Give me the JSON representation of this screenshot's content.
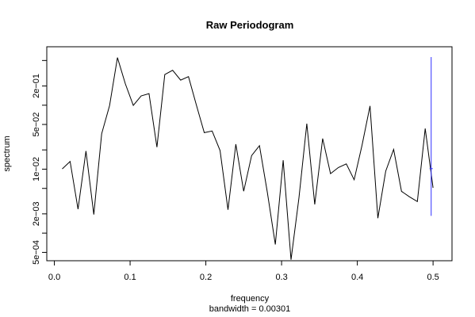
{
  "chart_data": {
    "type": "line",
    "title": "Raw Periodogram",
    "xlabel": "frequency",
    "sublabel": "bandwidth = 0.00301",
    "ylabel": "spectrum",
    "y_scale": "log",
    "xlim": [
      -0.01,
      0.525
    ],
    "ylim": [
      0.00037,
      0.82
    ],
    "x_ticks": [
      {
        "value": 0.0,
        "label": "0.0"
      },
      {
        "value": 0.1,
        "label": "0.1"
      },
      {
        "value": 0.2,
        "label": "0.2"
      },
      {
        "value": 0.3,
        "label": "0.3"
      },
      {
        "value": 0.4,
        "label": "0.4"
      },
      {
        "value": 0.5,
        "label": "0.5"
      }
    ],
    "y_ticks_major": [
      {
        "value": 0.0005,
        "label": "5e−04"
      },
      {
        "value": 0.002,
        "label": "2e−03"
      },
      {
        "value": 0.01,
        "label": "1e−02"
      },
      {
        "value": 0.05,
        "label": "5e−02"
      },
      {
        "value": 0.2,
        "label": "2e−01"
      }
    ],
    "y_ticks_minor": [
      0.001,
      0.005,
      0.02,
      0.1,
      0.5
    ],
    "series": [
      {
        "color": "#000000",
        "x": [
          0.0104,
          0.0208,
          0.0312,
          0.0417,
          0.0521,
          0.0625,
          0.0729,
          0.0833,
          0.0938,
          0.1042,
          0.1146,
          0.125,
          0.1354,
          0.1458,
          0.1562,
          0.1667,
          0.1771,
          0.1875,
          0.1979,
          0.2083,
          0.2188,
          0.2292,
          0.2396,
          0.25,
          0.2604,
          0.2708,
          0.2812,
          0.2917,
          0.3021,
          0.3125,
          0.3229,
          0.3333,
          0.3438,
          0.3542,
          0.3646,
          0.375,
          0.3854,
          0.3958,
          0.4062,
          0.4167,
          0.4271,
          0.4375,
          0.4479,
          0.4583,
          0.4688,
          0.4792,
          0.4896,
          0.5
        ],
        "values": [
          0.0101,
          0.0132,
          0.00237,
          0.0192,
          0.00195,
          0.0357,
          0.0989,
          0.554,
          0.215,
          0.0993,
          0.14,
          0.152,
          0.0221,
          0.301,
          0.351,
          0.247,
          0.28,
          0.101,
          0.0372,
          0.0395,
          0.0196,
          0.00232,
          0.0246,
          0.00452,
          0.0163,
          0.0233,
          0.00436,
          0.000664,
          0.0138,
          0.000384,
          0.00357,
          0.0515,
          0.00281,
          0.0301,
          0.00852,
          0.0106,
          0.0121,
          0.00683,
          0.0235,
          0.0974,
          0.00171,
          0.00929,
          0.0204,
          0.00451,
          0.0037,
          0.00312,
          0.0432,
          0.0051
        ]
      }
    ],
    "ci_bar": {
      "color": "#3030ff",
      "x": 0.4975,
      "upper": 0.565,
      "lower": 0.00186,
      "center": 0.0102
    }
  }
}
